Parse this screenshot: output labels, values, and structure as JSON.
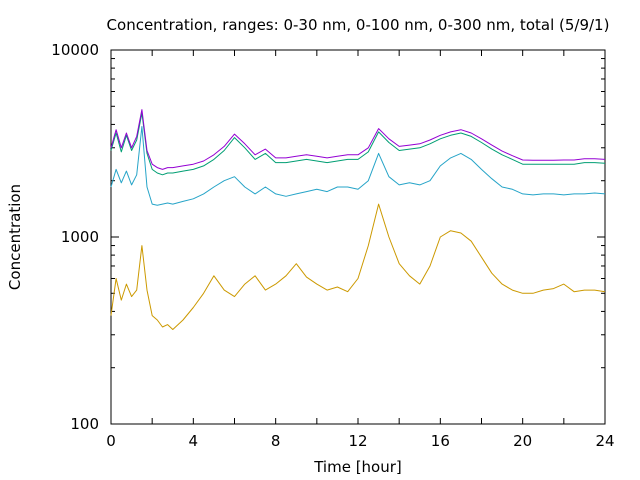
{
  "chart_data": {
    "type": "line",
    "title": "Concentration, ranges: 0-30 nm, 0-100 nm, 0-300 nm, total (5/9/1)",
    "xlabel": "Time [hour]",
    "ylabel": "Concentration",
    "xlim": [
      0,
      24
    ],
    "ylim": [
      100,
      10000
    ],
    "yscale": "log",
    "grid": false,
    "legend": "none",
    "xticks": [
      "0",
      "4",
      "8",
      "12",
      "16",
      "20",
      "24"
    ],
    "yticks": [
      "100",
      "1000",
      "10000"
    ],
    "x": [
      0,
      0.25,
      0.5,
      0.75,
      1,
      1.25,
      1.5,
      1.75,
      2,
      2.25,
      2.5,
      2.75,
      3,
      3.5,
      4,
      4.5,
      5,
      5.5,
      6,
      6.5,
      7,
      7.5,
      8,
      8.5,
      9,
      9.5,
      10,
      10.5,
      11,
      11.5,
      12,
      12.5,
      13,
      13.5,
      14,
      14.5,
      15,
      15.5,
      16,
      16.5,
      17,
      17.5,
      18,
      18.5,
      19,
      19.5,
      20,
      20.5,
      21,
      21.5,
      22,
      22.5,
      23,
      23.5,
      24
    ],
    "series": [
      {
        "color": "#cc9900",
        "values": [
          380,
          600,
          460,
          560,
          480,
          520,
          900,
          520,
          380,
          360,
          330,
          340,
          320,
          360,
          420,
          500,
          620,
          520,
          480,
          560,
          620,
          520,
          560,
          620,
          720,
          610,
          560,
          520,
          540,
          510,
          600,
          900,
          1500,
          1000,
          720,
          620,
          560,
          700,
          1000,
          1080,
          1050,
          950,
          780,
          640,
          560,
          520,
          500,
          500,
          520,
          530,
          560,
          510,
          520,
          520,
          510
        ]
      },
      {
        "color": "#26a4c8",
        "values": [
          1850,
          2300,
          1950,
          2250,
          1900,
          2150,
          3900,
          1850,
          1500,
          1480,
          1500,
          1520,
          1500,
          1550,
          1600,
          1700,
          1850,
          2000,
          2100,
          1850,
          1700,
          1850,
          1700,
          1650,
          1700,
          1750,
          1800,
          1750,
          1850,
          1850,
          1800,
          2000,
          2800,
          2100,
          1900,
          1950,
          1900,
          2000,
          2400,
          2650,
          2800,
          2600,
          2300,
          2050,
          1850,
          1800,
          1700,
          1680,
          1700,
          1700,
          1680,
          1700,
          1700,
          1720,
          1700
        ]
      },
      {
        "color": "#009e73",
        "values": [
          2900,
          3600,
          2850,
          3500,
          2900,
          3300,
          4600,
          2800,
          2300,
          2200,
          2150,
          2200,
          2200,
          2250,
          2300,
          2400,
          2600,
          2900,
          3400,
          3000,
          2600,
          2800,
          2500,
          2500,
          2550,
          2600,
          2550,
          2500,
          2550,
          2600,
          2600,
          2850,
          3650,
          3200,
          2900,
          2950,
          3000,
          3150,
          3350,
          3500,
          3600,
          3450,
          3200,
          2950,
          2750,
          2600,
          2450,
          2450,
          2450,
          2450,
          2450,
          2450,
          2500,
          2500,
          2480
        ]
      },
      {
        "color": "#9400d3",
        "values": [
          3000,
          3750,
          3000,
          3600,
          3000,
          3450,
          4800,
          2900,
          2450,
          2350,
          2300,
          2350,
          2350,
          2400,
          2450,
          2550,
          2750,
          3050,
          3550,
          3150,
          2750,
          2950,
          2650,
          2650,
          2700,
          2750,
          2700,
          2650,
          2700,
          2750,
          2750,
          3000,
          3800,
          3350,
          3050,
          3100,
          3150,
          3300,
          3500,
          3650,
          3750,
          3600,
          3350,
          3100,
          2880,
          2720,
          2580,
          2570,
          2570,
          2570,
          2580,
          2580,
          2620,
          2620,
          2600
        ]
      }
    ]
  }
}
